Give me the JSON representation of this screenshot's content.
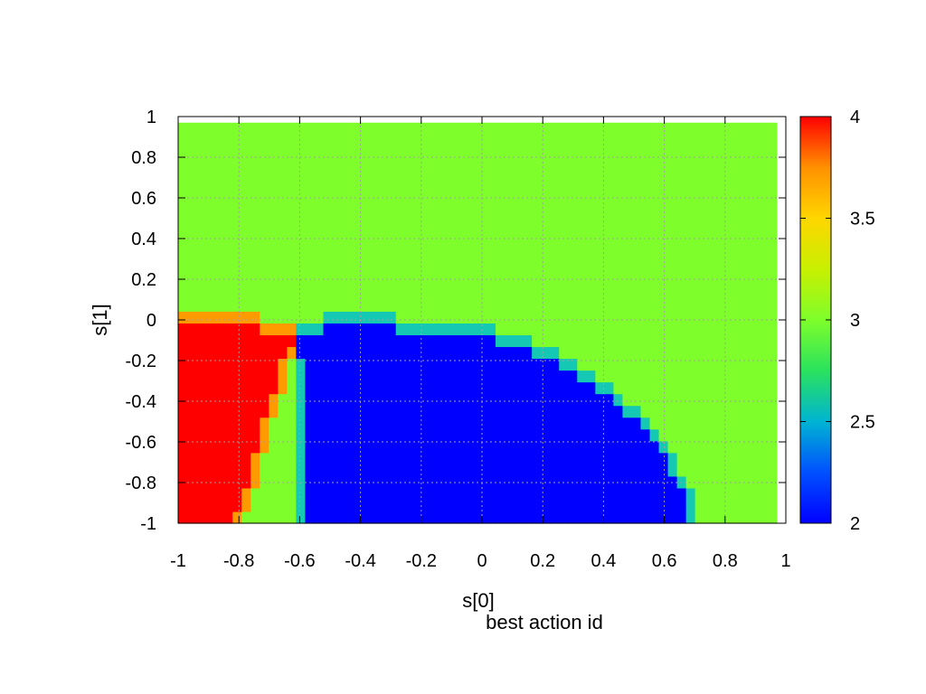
{
  "chart_data": {
    "type": "heatmap",
    "title": "best action id",
    "xlabel": "s[0]",
    "ylabel": "s[1]",
    "xlim": [
      -1,
      1
    ],
    "ylim": [
      -1,
      1
    ],
    "x_ticks": [
      "-1",
      "-0.8",
      "-0.6",
      "-0.4",
      "-0.2",
      "0",
      "0.2",
      "0.4",
      "0.6",
      "0.8",
      "1"
    ],
    "y_ticks": [
      "1",
      "0.8",
      "0.6",
      "0.4",
      "0.2",
      "0",
      "-0.2",
      "-0.4",
      "-0.6",
      "-0.8",
      "-1"
    ],
    "grid": true,
    "grid_resolution": {
      "nx": 66,
      "ny": 34,
      "cell": 0.03
    },
    "value_meaning": "best action id at each (s[0], s[1]) cell",
    "regions": [
      {
        "value": 3,
        "description": "s[1] >= 0 and right of blue region (default)"
      },
      {
        "value": 4,
        "description": "s[1] in [-1, 0.03], s[0] from -1 to left boundary",
        "left_boundary_points": [
          [
            -1.0,
            0.03
          ],
          [
            -0.8,
            0.03
          ],
          [
            -0.71,
            0.01
          ],
          [
            -0.62,
            0.0
          ],
          [
            -0.62,
            -0.15
          ],
          [
            -0.65,
            -0.3
          ],
          [
            -0.69,
            -0.5
          ],
          [
            -0.72,
            -0.7
          ],
          [
            -0.76,
            -0.9
          ],
          [
            -0.8,
            -1.0
          ]
        ]
      },
      {
        "value": 2,
        "description": "blue region bounded above by arc",
        "arc_points": [
          [
            -0.59,
            0.0
          ],
          [
            -0.4,
            0.04
          ],
          [
            -0.2,
            0.0
          ],
          [
            0.0,
            -0.02
          ],
          [
            0.2,
            -0.12
          ],
          [
            0.4,
            -0.3
          ],
          [
            0.55,
            -0.5
          ],
          [
            0.64,
            -0.7
          ],
          [
            0.7,
            -0.9
          ],
          [
            0.72,
            -1.0
          ]
        ]
      }
    ],
    "colorbar": {
      "ticks": [
        "4",
        "3.5",
        "3",
        "2.5",
        "2"
      ],
      "range": [
        2,
        4
      ],
      "colors": [
        "#0000ff",
        "#0050ff",
        "#00b4d2",
        "#2ae25e",
        "#7efe2b",
        "#c8f000",
        "#ffd600",
        "#ff9000",
        "#ff0000"
      ]
    }
  }
}
